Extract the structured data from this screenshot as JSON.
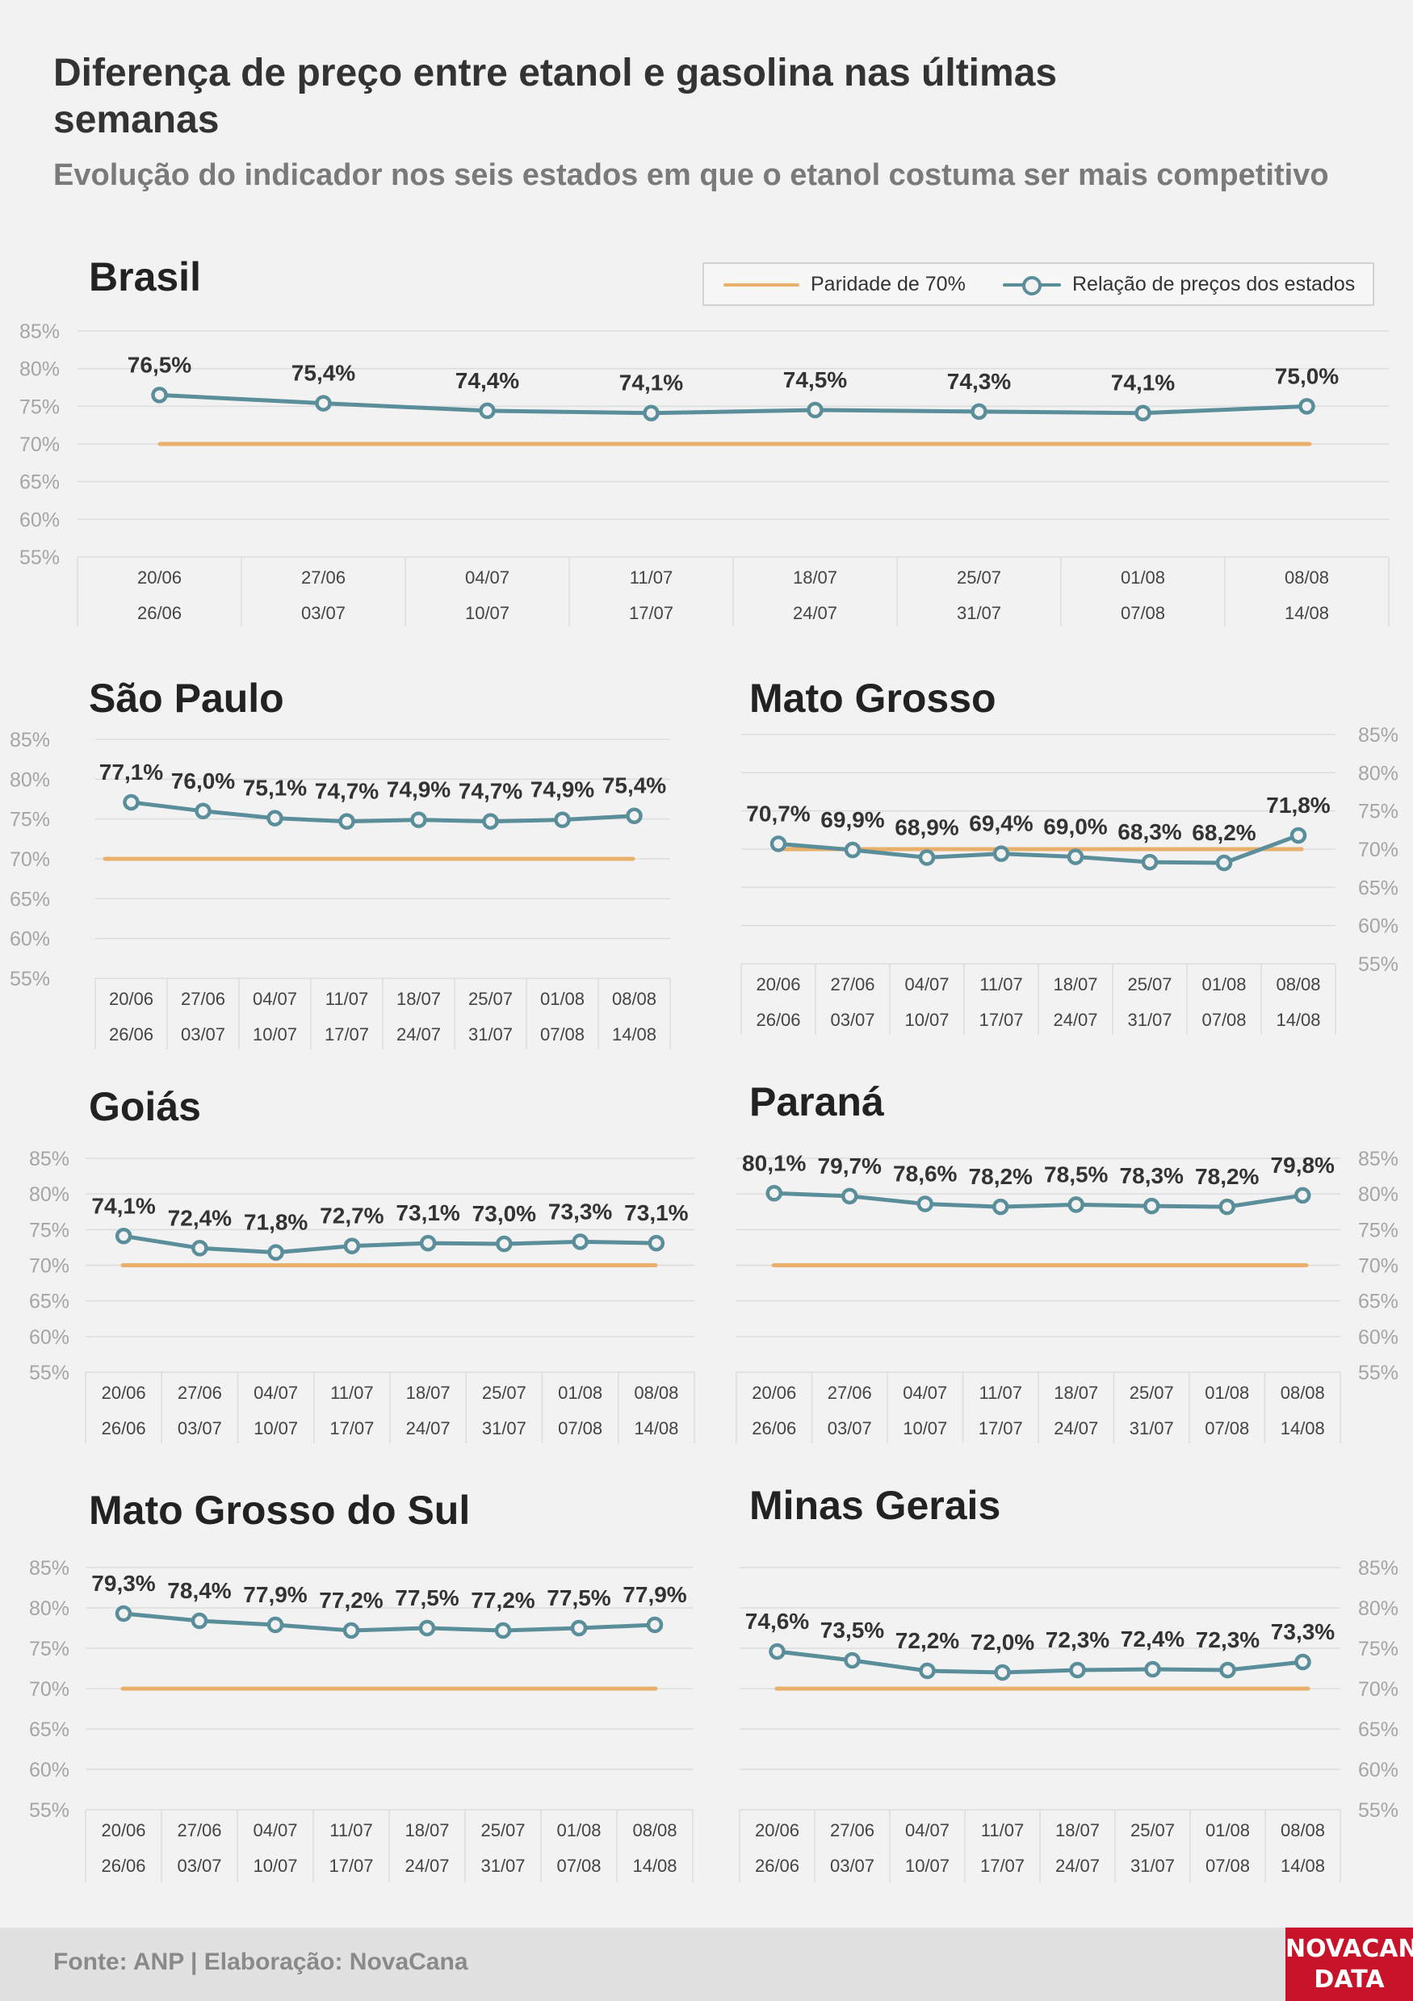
{
  "header": {
    "title": "Diferença de preço entre etanol e gasolina nas últimas semanas",
    "subtitle": "Evolução do indicador nos seis estados em que o etanol costuma ser mais competitivo"
  },
  "legend": {
    "parity_label": "Paridade de 70%",
    "series_label": "Relação de preços dos estados"
  },
  "footer": {
    "source": "Fonte: ANP | Elaboração: NovaCana",
    "logo_line1": "NOVACANA",
    "logo_line2": "DATA"
  },
  "colors": {
    "parity": "#e8b06a",
    "series": "#5a8e9a",
    "grid": "#dcdcdc",
    "axis_text": "#a5a5a5",
    "label_text": "#333333"
  },
  "chart_data": [
    {
      "type": "line",
      "title": "Brasil",
      "categories": [
        [
          "20/06",
          "26/06"
        ],
        [
          "27/06",
          "03/07"
        ],
        [
          "04/07",
          "10/07"
        ],
        [
          "11/07",
          "17/07"
        ],
        [
          "18/07",
          "24/07"
        ],
        [
          "25/07",
          "31/07"
        ],
        [
          "01/08",
          "07/08"
        ],
        [
          "08/08",
          "14/08"
        ]
      ],
      "series": [
        {
          "values": [
            76.5,
            75.4,
            74.4,
            74.1,
            74.5,
            74.3,
            74.1,
            75.0
          ],
          "labels": [
            "76,5%",
            "75,4%",
            "74,4%",
            "74,1%",
            "74,5%",
            "74,3%",
            "74,1%",
            "75,0%"
          ]
        },
        {
          "values": [
            70,
            70,
            70,
            70,
            70,
            70,
            70,
            70
          ]
        }
      ],
      "yticks": [
        "85%",
        "80%",
        "75%",
        "70%",
        "65%",
        "60%",
        "55%"
      ],
      "ylim": [
        55,
        85
      ],
      "yaxis_side": "left",
      "grid": true
    },
    {
      "type": "line",
      "title": "São Paulo",
      "categories": [
        [
          "20/06",
          "26/06"
        ],
        [
          "27/06",
          "03/07"
        ],
        [
          "04/07",
          "10/07"
        ],
        [
          "11/07",
          "17/07"
        ],
        [
          "18/07",
          "24/07"
        ],
        [
          "25/07",
          "31/07"
        ],
        [
          "01/08",
          "07/08"
        ],
        [
          "08/08",
          "14/08"
        ]
      ],
      "series": [
        {
          "values": [
            77.1,
            76.0,
            75.1,
            74.7,
            74.9,
            74.7,
            74.9,
            75.4
          ],
          "labels": [
            "77,1%",
            "76,0%",
            "75,1%",
            "74,7%",
            "74,9%",
            "74,7%",
            "74,9%",
            "75,4%"
          ]
        },
        {
          "values": [
            70,
            70,
            70,
            70,
            70,
            70,
            70,
            70
          ]
        }
      ],
      "yticks": [
        "85%",
        "80%",
        "75%",
        "70%",
        "65%",
        "60%",
        "55%"
      ],
      "ylim": [
        55,
        85
      ],
      "yaxis_side": "left",
      "grid": true
    },
    {
      "type": "line",
      "title": "Mato Grosso",
      "categories": [
        [
          "20/06",
          "26/06"
        ],
        [
          "27/06",
          "03/07"
        ],
        [
          "04/07",
          "10/07"
        ],
        [
          "11/07",
          "17/07"
        ],
        [
          "18/07",
          "24/07"
        ],
        [
          "25/07",
          "31/07"
        ],
        [
          "01/08",
          "07/08"
        ],
        [
          "08/08",
          "14/08"
        ]
      ],
      "series": [
        {
          "values": [
            70.7,
            69.9,
            68.9,
            69.4,
            69.0,
            68.3,
            68.2,
            71.8
          ],
          "labels": [
            "70,7%",
            "69,9%",
            "68,9%",
            "69,4%",
            "69,0%",
            "68,3%",
            "68,2%",
            "71,8%"
          ]
        },
        {
          "values": [
            70,
            70,
            70,
            70,
            70,
            70,
            70,
            70
          ]
        }
      ],
      "yticks": [
        "85%",
        "80%",
        "75%",
        "70%",
        "65%",
        "60%",
        "55%"
      ],
      "ylim": [
        55,
        85
      ],
      "yaxis_side": "right",
      "grid": true
    },
    {
      "type": "line",
      "title": "Goiás",
      "categories": [
        [
          "20/06",
          "26/06"
        ],
        [
          "27/06",
          "03/07"
        ],
        [
          "04/07",
          "10/07"
        ],
        [
          "11/07",
          "17/07"
        ],
        [
          "18/07",
          "24/07"
        ],
        [
          "25/07",
          "31/07"
        ],
        [
          "01/08",
          "07/08"
        ],
        [
          "08/08",
          "14/08"
        ]
      ],
      "series": [
        {
          "values": [
            74.1,
            72.4,
            71.8,
            72.7,
            73.1,
            73.0,
            73.3,
            73.1
          ],
          "labels": [
            "74,1%",
            "72,4%",
            "71,8%",
            "72,7%",
            "73,1%",
            "73,0%",
            "73,3%",
            "73,1%"
          ]
        },
        {
          "values": [
            70,
            70,
            70,
            70,
            70,
            70,
            70,
            70
          ]
        }
      ],
      "yticks": [
        "85%",
        "80%",
        "75%",
        "70%",
        "65%",
        "60%",
        "55%"
      ],
      "ylim": [
        55,
        85
      ],
      "yaxis_side": "left",
      "grid": true
    },
    {
      "type": "line",
      "title": "Paraná",
      "categories": [
        [
          "20/06",
          "26/06"
        ],
        [
          "27/06",
          "03/07"
        ],
        [
          "04/07",
          "10/07"
        ],
        [
          "11/07",
          "17/07"
        ],
        [
          "18/07",
          "24/07"
        ],
        [
          "25/07",
          "31/07"
        ],
        [
          "01/08",
          "07/08"
        ],
        [
          "08/08",
          "14/08"
        ]
      ],
      "series": [
        {
          "values": [
            80.1,
            79.7,
            78.6,
            78.2,
            78.5,
            78.3,
            78.2,
            79.8
          ],
          "labels": [
            "80,1%",
            "79,7%",
            "78,6%",
            "78,2%",
            "78,5%",
            "78,3%",
            "78,2%",
            "79,8%"
          ]
        },
        {
          "values": [
            70,
            70,
            70,
            70,
            70,
            70,
            70,
            70
          ]
        }
      ],
      "yticks": [
        "85%",
        "80%",
        "75%",
        "70%",
        "65%",
        "60%",
        "55%"
      ],
      "ylim": [
        55,
        85
      ],
      "yaxis_side": "right",
      "grid": true
    },
    {
      "type": "line",
      "title": "Mato Grosso do Sul",
      "categories": [
        [
          "20/06",
          "26/06"
        ],
        [
          "27/06",
          "03/07"
        ],
        [
          "04/07",
          "10/07"
        ],
        [
          "11/07",
          "17/07"
        ],
        [
          "18/07",
          "24/07"
        ],
        [
          "25/07",
          "31/07"
        ],
        [
          "01/08",
          "07/08"
        ],
        [
          "08/08",
          "14/08"
        ]
      ],
      "series": [
        {
          "values": [
            79.3,
            78.4,
            77.9,
            77.2,
            77.5,
            77.2,
            77.5,
            77.9
          ],
          "labels": [
            "79,3%",
            "78,4%",
            "77,9%",
            "77,2%",
            "77,5%",
            "77,2%",
            "77,5%",
            "77,9%"
          ]
        },
        {
          "values": [
            70,
            70,
            70,
            70,
            70,
            70,
            70,
            70
          ]
        }
      ],
      "yticks": [
        "85%",
        "80%",
        "75%",
        "70%",
        "65%",
        "60%",
        "55%"
      ],
      "ylim": [
        55,
        85
      ],
      "yaxis_side": "left",
      "grid": true
    },
    {
      "type": "line",
      "title": "Minas Gerais",
      "categories": [
        [
          "20/06",
          "26/06"
        ],
        [
          "27/06",
          "03/07"
        ],
        [
          "04/07",
          "10/07"
        ],
        [
          "11/07",
          "17/07"
        ],
        [
          "18/07",
          "24/07"
        ],
        [
          "25/07",
          "31/07"
        ],
        [
          "01/08",
          "07/08"
        ],
        [
          "08/08",
          "14/08"
        ]
      ],
      "series": [
        {
          "values": [
            74.6,
            73.5,
            72.2,
            72.0,
            72.3,
            72.4,
            72.3,
            73.3
          ],
          "labels": [
            "74,6%",
            "73,5%",
            "72,2%",
            "72,0%",
            "72,3%",
            "72,4%",
            "72,3%",
            "73,3%"
          ]
        },
        {
          "values": [
            70,
            70,
            70,
            70,
            70,
            70,
            70,
            70
          ]
        }
      ],
      "yticks": [
        "85%",
        "80%",
        "75%",
        "70%",
        "65%",
        "60%",
        "55%"
      ],
      "ylim": [
        55,
        85
      ],
      "yaxis_side": "right",
      "grid": true
    }
  ]
}
